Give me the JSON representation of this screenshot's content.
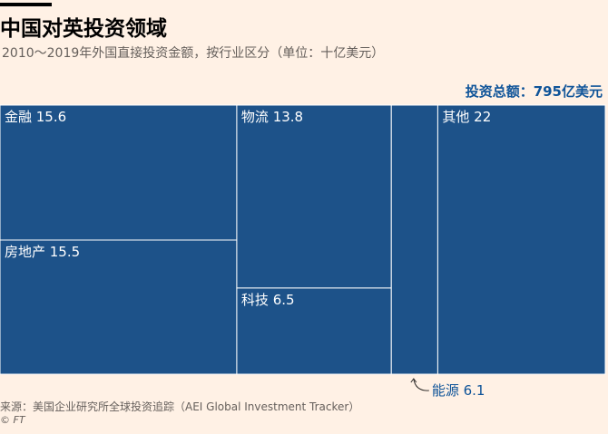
{
  "header": {
    "title": "中国对英投资领域",
    "subtitle": "2010～2019年外国直接投资金额，按行业区分（单位：十亿美元）",
    "total": "投资总额：795亿美元"
  },
  "footer": {
    "source": "来源：美国企业研究所全球投资追踪（AEI Global Investment Tracker）",
    "credit": "© FT"
  },
  "colors": {
    "background": "#fff1e5",
    "cell_fill": "#1d5289",
    "cell_border": "#ffffff",
    "accent": "#0f5499"
  },
  "chart_data": {
    "type": "treemap",
    "unit": "十亿美元",
    "total": 79.5,
    "items": [
      {
        "name": "金融",
        "value": 15.6,
        "label": "金融 15.6"
      },
      {
        "name": "房地产",
        "value": 15.5,
        "label": "房地产 15.5"
      },
      {
        "name": "物流",
        "value": 13.8,
        "label": "物流 13.8"
      },
      {
        "name": "科技",
        "value": 6.5,
        "label": "科技 6.5"
      },
      {
        "name": "能源",
        "value": 6.1,
        "label": "能源 6.1"
      },
      {
        "name": "其他",
        "value": 22,
        "label": "其他 22"
      }
    ]
  }
}
